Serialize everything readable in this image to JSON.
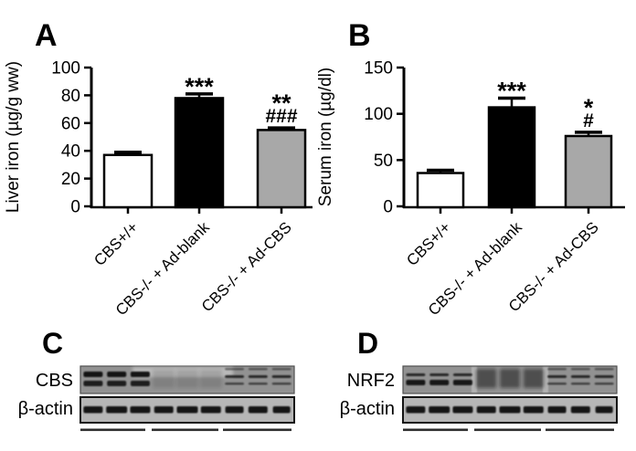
{
  "figure": {
    "background": "#ffffff",
    "ink": "#000000"
  },
  "chart_data": [
    {
      "type": "bar",
      "panel": "A",
      "title": "",
      "ylabel": "Liver iron (µg/g ww)",
      "xlabel": "",
      "categories": [
        "CBS+/+",
        "CBS-/- + Ad-blank",
        "CBS-/- + Ad-CBS"
      ],
      "values": [
        37,
        78,
        55
      ],
      "errors": [
        2,
        3,
        1.5
      ],
      "annotations": [
        [],
        [
          "***"
        ],
        [
          "**",
          "###"
        ]
      ],
      "bar_colors": [
        "#ffffff",
        "#000000",
        "#a8a8a8"
      ],
      "ylim": [
        0,
        100
      ],
      "yticks": [
        0,
        20,
        40,
        60,
        80,
        100
      ],
      "grid": false,
      "legend": null
    },
    {
      "type": "bar",
      "panel": "B",
      "title": "",
      "ylabel": "Serum iron (µg/dl)",
      "xlabel": "",
      "categories": [
        "CBS+/+",
        "CBS-/- + Ad-blank",
        "CBS-/- + Ad-CBS"
      ],
      "values": [
        36,
        107,
        76
      ],
      "errors": [
        3,
        10,
        4
      ],
      "annotations": [
        [],
        [
          "***"
        ],
        [
          "*",
          "#"
        ]
      ],
      "bar_colors": [
        "#ffffff",
        "#000000",
        "#a8a8a8"
      ],
      "ylim": [
        0,
        150
      ],
      "yticks": [
        0,
        50,
        100,
        150
      ],
      "grid": false,
      "legend": null
    }
  ],
  "blots": [
    {
      "panel": "C",
      "rows": [
        {
          "label": "CBS",
          "lanes": [
            "double-strong",
            "double-strong",
            "double-strong",
            "faint",
            "faint",
            "faint",
            "double-medium",
            "double-medium",
            "double-medium"
          ]
        },
        {
          "label": "β-actin",
          "lanes": [
            "actin",
            "actin",
            "actin",
            "actin",
            "actin",
            "actin",
            "actin",
            "actin",
            "actin"
          ]
        }
      ],
      "lane_groups": 3
    },
    {
      "panel": "D",
      "rows": [
        {
          "label": "NRF2",
          "lanes": [
            "double-heavy",
            "double-heavy",
            "double-heavy",
            "smear",
            "smear",
            "smear",
            "double-medium",
            "double-medium",
            "double-medium"
          ]
        },
        {
          "label": "β-actin",
          "lanes": [
            "actin",
            "actin",
            "actin",
            "actin",
            "actin",
            "actin",
            "actin",
            "actin",
            "actin"
          ]
        }
      ],
      "lane_groups": 3
    }
  ]
}
